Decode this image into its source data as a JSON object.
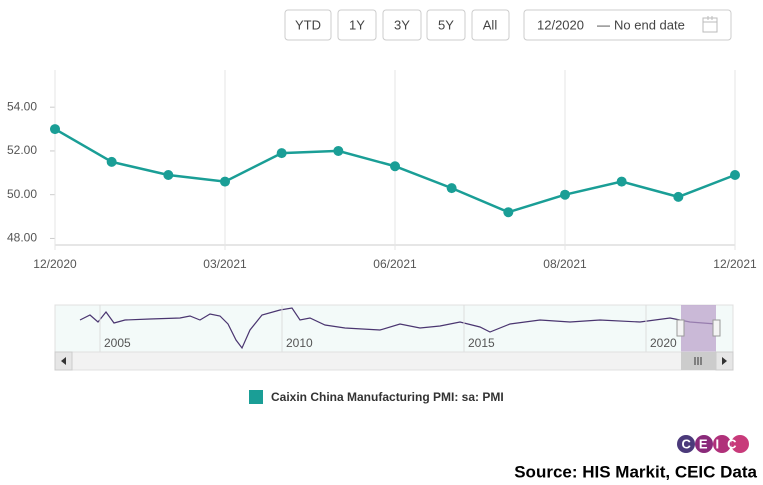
{
  "toolbar": {
    "buttons": [
      "YTD",
      "1Y",
      "3Y",
      "5Y",
      "All"
    ],
    "range_start": "12/2020",
    "range_separator": "—",
    "range_end": "No end date"
  },
  "chart_data": {
    "type": "line",
    "categories": [
      "12/2020",
      null,
      null,
      "03/2021",
      null,
      null,
      "06/2021",
      null,
      null,
      "08/2021",
      null,
      null,
      "12/2021"
    ],
    "series": [
      {
        "name": "Caixin China Manufacturing PMI: sa: PMI",
        "color": "#1a9e96",
        "values": [
          53.0,
          51.5,
          50.9,
          50.6,
          51.9,
          52.0,
          51.3,
          50.3,
          49.2,
          50.0,
          50.6,
          49.9,
          50.9
        ]
      }
    ],
    "ylim": [
      47.7,
      55.7
    ],
    "yticks": [
      {
        "value": 48,
        "label": "48.00"
      },
      {
        "value": 50,
        "label": "50.00"
      },
      {
        "value": 52,
        "label": "52.00"
      },
      {
        "value": 54,
        "label": "54.00"
      }
    ]
  },
  "navigator": {
    "labels": [
      "2005",
      "2010",
      "2015",
      "2020"
    ]
  },
  "footer": {
    "logo": "CEIC",
    "source": "Source: HIS Markit, CEIC Data"
  }
}
